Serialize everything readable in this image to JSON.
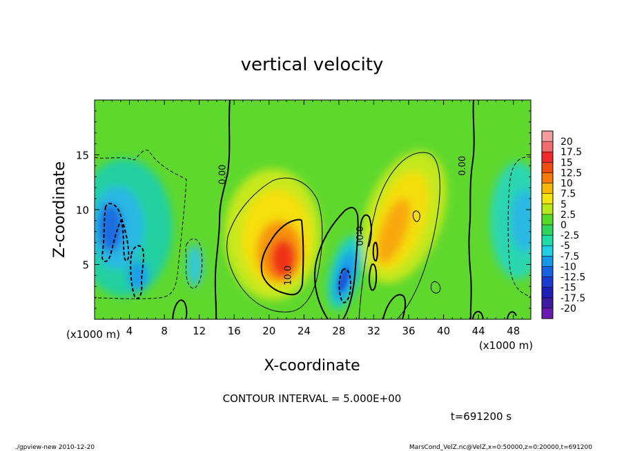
{
  "chart_data": {
    "type": "heatmap",
    "title": "vertical velocity",
    "xlabel": "X-coordinate",
    "ylabel": "Z-coordinate",
    "x_unit_label": "(x1000 m)",
    "x_unit_label_right": "(x1000 m)",
    "xlim": [
      0,
      50
    ],
    "ylim": [
      0,
      20
    ],
    "x_ticks": [
      "4",
      "8",
      "12",
      "16",
      "20",
      "24",
      "28",
      "32",
      "36",
      "40",
      "44",
      "48"
    ],
    "y_ticks": [
      "5",
      "10",
      "15"
    ],
    "x_tick_values": [
      4,
      8,
      12,
      16,
      20,
      24,
      28,
      32,
      36,
      40,
      44,
      48
    ],
    "y_tick_values": [
      5,
      10,
      15
    ],
    "contour_interval_text": "CONTOUR INTERVAL = 5.000E+00",
    "time_text": "t=691200 s",
    "contour_labels": [
      {
        "text": "0.00",
        "x": 15.0,
        "z": 13.2,
        "rotate": -90
      },
      {
        "text": "10.0",
        "x": 22.5,
        "z": 4.0,
        "rotate": -90
      },
      {
        "text": "0.00",
        "x": 30.0,
        "z": 7.6,
        "rotate": 90
      },
      {
        "text": "0.00",
        "x": 42.5,
        "z": 14.0,
        "rotate": -90
      }
    ],
    "colorbar": {
      "levels": [
        "20",
        "17.5",
        "15",
        "12.5",
        "10",
        "7.5",
        "5",
        "2.5",
        "0",
        "-2.5",
        "-5",
        "-7.5",
        "-10",
        "-12.5",
        "-15",
        "-17.5",
        "-20"
      ],
      "colors": [
        "#f29c9c",
        "#f26d6d",
        "#ef2a2a",
        "#f24d10",
        "#f77a0a",
        "#fab806",
        "#f2e30a",
        "#b8e81a",
        "#57d927",
        "#2fd45b",
        "#20dca7",
        "#22cde6",
        "#1797ea",
        "#1a63e0",
        "#1a3ad0",
        "#1d1fb5",
        "#3d1a9e",
        "#6a1ab0"
      ]
    },
    "features": [
      {
        "name": "updraft-1",
        "x": 21.7,
        "z": 6.2,
        "peak": 15
      },
      {
        "name": "updraft-2",
        "x": 34.5,
        "z": 8.5,
        "peak": 10
      },
      {
        "name": "downdraft-1",
        "x": 29.0,
        "z": 3.5,
        "peak": -12
      },
      {
        "name": "downdraft-2",
        "x": 1.6,
        "z": 8.0,
        "peak": -10
      },
      {
        "name": "downdraft-3",
        "x": 49.0,
        "z": 9.0,
        "peak": -8
      }
    ]
  },
  "footer": {
    "left": "./gpview-new  2010-12-20",
    "right": "MarsCond_VelZ.nc@VelZ,x=0:50000,z=0:20000,t=691200"
  }
}
